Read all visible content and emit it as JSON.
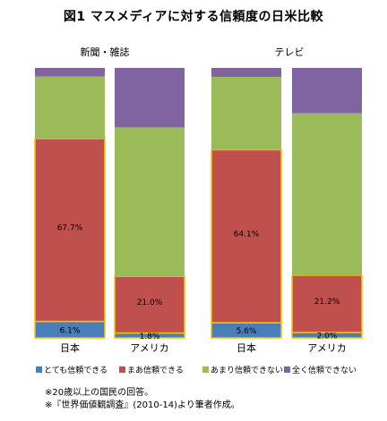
{
  "title": "図1 マスメディアに対する信頼度の日米比較",
  "chart_data": [
    {
      "type": "bar",
      "stacked": true,
      "title": "新聞・雑誌",
      "categories": [
        "日本",
        "アメリカ"
      ],
      "series": [
        {
          "name": "とても信頼できる",
          "values": [
            6.1,
            1.8
          ],
          "color": "#4a7ebb"
        },
        {
          "name": "まあ信頼できる",
          "values": [
            67.7,
            21.0
          ],
          "color": "#c0504d"
        },
        {
          "name": "あまり信頼できない",
          "values": [
            23.0,
            55.2
          ],
          "color": "#9bbb59"
        },
        {
          "name": "全く信頼できない",
          "values": [
            3.2,
            22.0
          ],
          "color": "#8064a2"
        }
      ],
      "data_labels": {
        "日本": [
          "6.1%",
          "67.7%"
        ],
        "アメリカ": [
          "1.8%",
          "21.0%"
        ]
      },
      "ylim": [
        0,
        100
      ]
    },
    {
      "type": "bar",
      "stacked": true,
      "title": "テレビ",
      "categories": [
        "日本",
        "アメリカ"
      ],
      "series": [
        {
          "name": "とても信頼できる",
          "values": [
            5.6,
            2.0
          ],
          "color": "#4a7ebb"
        },
        {
          "name": "まあ信頼できる",
          "values": [
            64.1,
            21.2
          ],
          "color": "#c0504d"
        },
        {
          "name": "あまり信頼できない",
          "values": [
            27.0,
            60.0
          ],
          "color": "#9bbb59"
        },
        {
          "name": "全く信頼できない",
          "values": [
            3.3,
            16.8
          ],
          "color": "#8064a2"
        }
      ],
      "data_labels": {
        "日本": [
          "5.6%",
          "64.1%"
        ],
        "アメリカ": [
          "2.0%",
          "21.2%"
        ]
      },
      "ylim": [
        0,
        100
      ]
    }
  ],
  "legend": [
    {
      "label": "とても信頼できる",
      "color": "#4a7ebb"
    },
    {
      "label": "まあ信頼できる",
      "color": "#c0504d"
    },
    {
      "label": "あまり信頼できない",
      "color": "#9bbb59"
    },
    {
      "label": "全く信頼できない",
      "color": "#8064a2"
    }
  ],
  "highlight_color": "#f5c400",
  "notes": [
    "※20歳以上の国民の回答。",
    "※『世界価値観調査』(2010-14)より筆者作成。"
  ]
}
